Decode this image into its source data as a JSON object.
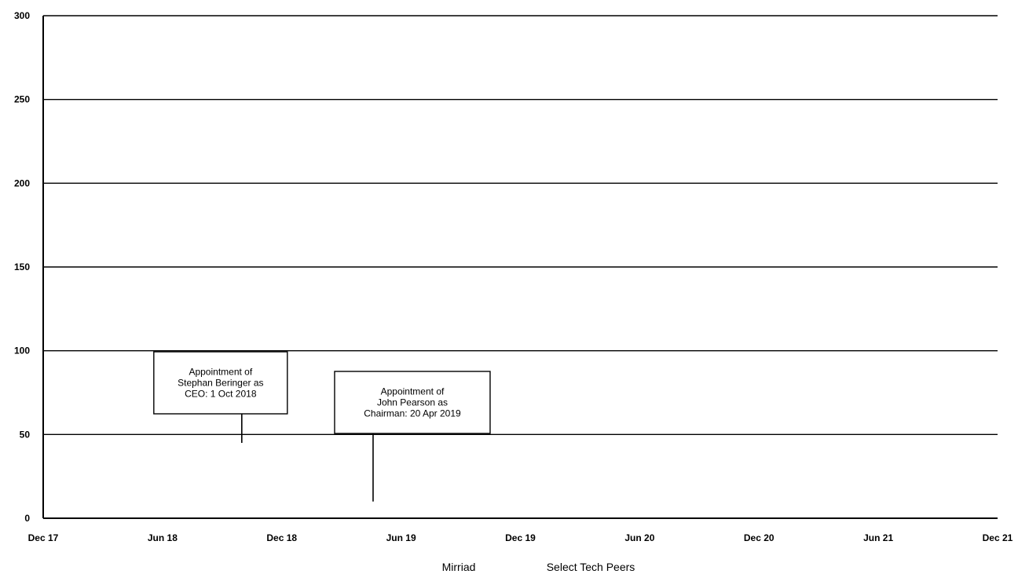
{
  "chart_data": {
    "type": "line",
    "title": "",
    "xlabel": "",
    "ylabel": "",
    "x_ticks": [
      "Dec 17",
      "Jun 18",
      "Dec 18",
      "Jun 19",
      "Dec 19",
      "Jun 20",
      "Dec 20",
      "Jun 21",
      "Dec 21"
    ],
    "x_range": [
      "Dec 17",
      "Dec 21"
    ],
    "ylim": [
      0,
      300
    ],
    "y_ticks": [
      0,
      50,
      100,
      150,
      200,
      250,
      300
    ],
    "grid": "horizontal",
    "legend_position": "bottom-center",
    "series": [
      {
        "name": "Mirriad",
        "values": []
      },
      {
        "name": "Select Tech Peers",
        "values": []
      }
    ],
    "annotations": [
      {
        "lines": [
          "Appointment of",
          "Stephan Beringer as",
          "CEO: 1 Oct 2018"
        ],
        "date": "2018-10-01",
        "y": 45
      },
      {
        "lines": [
          "Appointment of",
          "John Pearson as",
          "Chairman: 20 Apr 2019"
        ],
        "date": "2019-04-20",
        "y": 10
      }
    ]
  }
}
